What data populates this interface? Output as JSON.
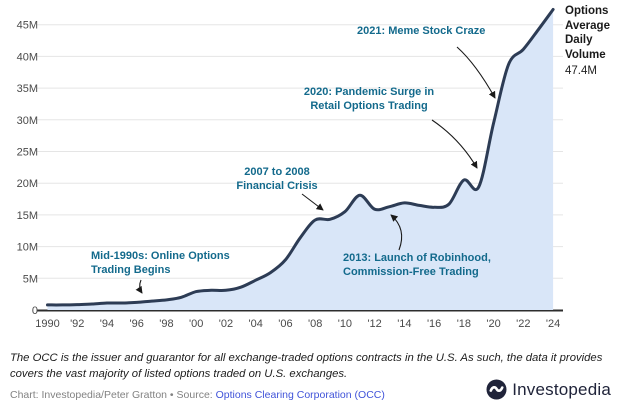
{
  "chart_data": {
    "type": "area",
    "title": "Options Average Daily Volume",
    "xlabel": "",
    "ylabel": "",
    "grid": true,
    "legend_position": "none",
    "x": [
      1990,
      1991,
      1992,
      1993,
      1994,
      1995,
      1996,
      1997,
      1998,
      1999,
      2000,
      2001,
      2002,
      2003,
      2004,
      2005,
      2006,
      2007,
      2008,
      2009,
      2010,
      2011,
      2012,
      2013,
      2014,
      2015,
      2016,
      2017,
      2018,
      2019,
      2020,
      2021,
      2022,
      2023,
      2024
    ],
    "values": [
      0.8,
      0.8,
      0.85,
      0.95,
      1.1,
      1.1,
      1.2,
      1.4,
      1.6,
      2.0,
      2.9,
      3.1,
      3.1,
      3.6,
      4.7,
      5.9,
      7.9,
      11.4,
      14.2,
      14.3,
      15.5,
      18.1,
      15.9,
      16.3,
      16.9,
      16.5,
      16.2,
      16.7,
      20.5,
      19.4,
      29.5,
      38.7,
      41.1,
      44.2,
      47.4
    ],
    "unit": "M",
    "ylim": [
      0,
      47.5
    ],
    "yticks": [
      {
        "value": 0,
        "label": "0"
      },
      {
        "value": 5,
        "label": "5M"
      },
      {
        "value": 10,
        "label": "10M"
      },
      {
        "value": 15,
        "label": "15M"
      },
      {
        "value": 20,
        "label": "20M"
      },
      {
        "value": 25,
        "label": "25M"
      },
      {
        "value": 30,
        "label": "30M"
      },
      {
        "value": 35,
        "label": "35M"
      },
      {
        "value": 40,
        "label": "40M"
      },
      {
        "value": 45,
        "label": "45M"
      }
    ],
    "xticks": [
      {
        "value": 1990,
        "label": "1990"
      },
      {
        "value": 1992,
        "label": "'92"
      },
      {
        "value": 1994,
        "label": "'94"
      },
      {
        "value": 1996,
        "label": "'96"
      },
      {
        "value": 1998,
        "label": "'98"
      },
      {
        "value": 2000,
        "label": "'00"
      },
      {
        "value": 2002,
        "label": "'02"
      },
      {
        "value": 2004,
        "label": "'04"
      },
      {
        "value": 2006,
        "label": "'06"
      },
      {
        "value": 2008,
        "label": "'08"
      },
      {
        "value": 2010,
        "label": "'10"
      },
      {
        "value": 2012,
        "label": "'12"
      },
      {
        "value": 2014,
        "label": "'14"
      },
      {
        "value": 2016,
        "label": "'16"
      },
      {
        "value": 2018,
        "label": "'18"
      },
      {
        "value": 2020,
        "label": "'20"
      },
      {
        "value": 2022,
        "label": "'22"
      },
      {
        "value": 2024,
        "label": "'24"
      }
    ],
    "line_color": "#2d3c55",
    "fill_color": "#d9e6f8",
    "annotation_color": "#136a8c",
    "annotations": [
      {
        "id": "mid-1990s",
        "lines": [
          "Mid-1990s: Online Options",
          "Trading Begins"
        ]
      },
      {
        "id": "financial-crisis",
        "lines": [
          "2007 to 2008",
          "Financial Crisis"
        ]
      },
      {
        "id": "robinhood",
        "lines": [
          "2013: Launch of Robinhood,",
          "Commission-Free Trading"
        ]
      },
      {
        "id": "pandemic",
        "lines": [
          "2020: Pandemic Surge in",
          "Retail Options Trading"
        ]
      },
      {
        "id": "meme-stock",
        "lines": [
          "2021: Meme Stock Craze"
        ]
      }
    ]
  },
  "right_label": {
    "lines": [
      "Options",
      "Average",
      "Daily",
      "Volume"
    ],
    "value": "47.4M"
  },
  "footer": {
    "note_lines": [
      "The OCC is the issuer and guarantor for all exchange-traded options contracts in the U.S. As such, the data it provides",
      "covers the vast majority of listed options traded on U.S. exchanges."
    ],
    "credit_prefix": "Chart: Investopedia/Peter Gratton • Source: ",
    "source_link": "Options Clearing Corporation (OCC)",
    "brand": "Investopedia"
  }
}
